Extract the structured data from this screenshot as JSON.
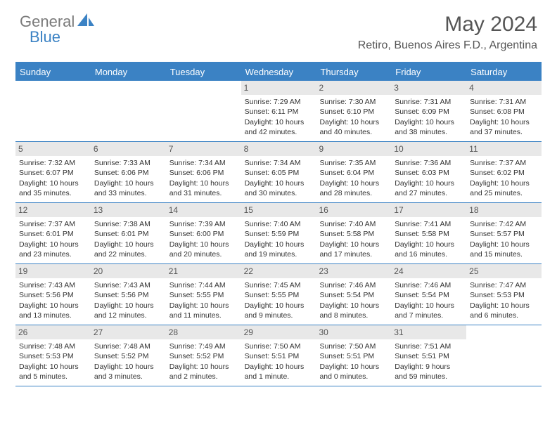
{
  "branding": {
    "logo_part1": "General",
    "logo_part2": "Blue",
    "logo_grey_color": "#7a7a7a",
    "logo_blue_color": "#3b82c4"
  },
  "header": {
    "month_title": "May 2024",
    "location": "Retiro, Buenos Aires F.D., Argentina"
  },
  "theme": {
    "header_bg": "#3b82c4",
    "header_text": "#ffffff",
    "daynum_bg": "#e8e8e8",
    "border_color": "#3b82c4",
    "body_text": "#333333",
    "title_fontsize": 30,
    "location_fontsize": 16,
    "dayheader_fontsize": 13,
    "cell_fontsize": 10.5
  },
  "day_names": [
    "Sunday",
    "Monday",
    "Tuesday",
    "Wednesday",
    "Thursday",
    "Friday",
    "Saturday"
  ],
  "weeks": [
    [
      {
        "empty": true
      },
      {
        "empty": true
      },
      {
        "empty": true
      },
      {
        "num": "1",
        "sunrise": "Sunrise: 7:29 AM",
        "sunset": "Sunset: 6:11 PM",
        "day1": "Daylight: 10 hours",
        "day2": "and 42 minutes."
      },
      {
        "num": "2",
        "sunrise": "Sunrise: 7:30 AM",
        "sunset": "Sunset: 6:10 PM",
        "day1": "Daylight: 10 hours",
        "day2": "and 40 minutes."
      },
      {
        "num": "3",
        "sunrise": "Sunrise: 7:31 AM",
        "sunset": "Sunset: 6:09 PM",
        "day1": "Daylight: 10 hours",
        "day2": "and 38 minutes."
      },
      {
        "num": "4",
        "sunrise": "Sunrise: 7:31 AM",
        "sunset": "Sunset: 6:08 PM",
        "day1": "Daylight: 10 hours",
        "day2": "and 37 minutes."
      }
    ],
    [
      {
        "num": "5",
        "sunrise": "Sunrise: 7:32 AM",
        "sunset": "Sunset: 6:07 PM",
        "day1": "Daylight: 10 hours",
        "day2": "and 35 minutes."
      },
      {
        "num": "6",
        "sunrise": "Sunrise: 7:33 AM",
        "sunset": "Sunset: 6:06 PM",
        "day1": "Daylight: 10 hours",
        "day2": "and 33 minutes."
      },
      {
        "num": "7",
        "sunrise": "Sunrise: 7:34 AM",
        "sunset": "Sunset: 6:06 PM",
        "day1": "Daylight: 10 hours",
        "day2": "and 31 minutes."
      },
      {
        "num": "8",
        "sunrise": "Sunrise: 7:34 AM",
        "sunset": "Sunset: 6:05 PM",
        "day1": "Daylight: 10 hours",
        "day2": "and 30 minutes."
      },
      {
        "num": "9",
        "sunrise": "Sunrise: 7:35 AM",
        "sunset": "Sunset: 6:04 PM",
        "day1": "Daylight: 10 hours",
        "day2": "and 28 minutes."
      },
      {
        "num": "10",
        "sunrise": "Sunrise: 7:36 AM",
        "sunset": "Sunset: 6:03 PM",
        "day1": "Daylight: 10 hours",
        "day2": "and 27 minutes."
      },
      {
        "num": "11",
        "sunrise": "Sunrise: 7:37 AM",
        "sunset": "Sunset: 6:02 PM",
        "day1": "Daylight: 10 hours",
        "day2": "and 25 minutes."
      }
    ],
    [
      {
        "num": "12",
        "sunrise": "Sunrise: 7:37 AM",
        "sunset": "Sunset: 6:01 PM",
        "day1": "Daylight: 10 hours",
        "day2": "and 23 minutes."
      },
      {
        "num": "13",
        "sunrise": "Sunrise: 7:38 AM",
        "sunset": "Sunset: 6:01 PM",
        "day1": "Daylight: 10 hours",
        "day2": "and 22 minutes."
      },
      {
        "num": "14",
        "sunrise": "Sunrise: 7:39 AM",
        "sunset": "Sunset: 6:00 PM",
        "day1": "Daylight: 10 hours",
        "day2": "and 20 minutes."
      },
      {
        "num": "15",
        "sunrise": "Sunrise: 7:40 AM",
        "sunset": "Sunset: 5:59 PM",
        "day1": "Daylight: 10 hours",
        "day2": "and 19 minutes."
      },
      {
        "num": "16",
        "sunrise": "Sunrise: 7:40 AM",
        "sunset": "Sunset: 5:58 PM",
        "day1": "Daylight: 10 hours",
        "day2": "and 17 minutes."
      },
      {
        "num": "17",
        "sunrise": "Sunrise: 7:41 AM",
        "sunset": "Sunset: 5:58 PM",
        "day1": "Daylight: 10 hours",
        "day2": "and 16 minutes."
      },
      {
        "num": "18",
        "sunrise": "Sunrise: 7:42 AM",
        "sunset": "Sunset: 5:57 PM",
        "day1": "Daylight: 10 hours",
        "day2": "and 15 minutes."
      }
    ],
    [
      {
        "num": "19",
        "sunrise": "Sunrise: 7:43 AM",
        "sunset": "Sunset: 5:56 PM",
        "day1": "Daylight: 10 hours",
        "day2": "and 13 minutes."
      },
      {
        "num": "20",
        "sunrise": "Sunrise: 7:43 AM",
        "sunset": "Sunset: 5:56 PM",
        "day1": "Daylight: 10 hours",
        "day2": "and 12 minutes."
      },
      {
        "num": "21",
        "sunrise": "Sunrise: 7:44 AM",
        "sunset": "Sunset: 5:55 PM",
        "day1": "Daylight: 10 hours",
        "day2": "and 11 minutes."
      },
      {
        "num": "22",
        "sunrise": "Sunrise: 7:45 AM",
        "sunset": "Sunset: 5:55 PM",
        "day1": "Daylight: 10 hours",
        "day2": "and 9 minutes."
      },
      {
        "num": "23",
        "sunrise": "Sunrise: 7:46 AM",
        "sunset": "Sunset: 5:54 PM",
        "day1": "Daylight: 10 hours",
        "day2": "and 8 minutes."
      },
      {
        "num": "24",
        "sunrise": "Sunrise: 7:46 AM",
        "sunset": "Sunset: 5:54 PM",
        "day1": "Daylight: 10 hours",
        "day2": "and 7 minutes."
      },
      {
        "num": "25",
        "sunrise": "Sunrise: 7:47 AM",
        "sunset": "Sunset: 5:53 PM",
        "day1": "Daylight: 10 hours",
        "day2": "and 6 minutes."
      }
    ],
    [
      {
        "num": "26",
        "sunrise": "Sunrise: 7:48 AM",
        "sunset": "Sunset: 5:53 PM",
        "day1": "Daylight: 10 hours",
        "day2": "and 5 minutes."
      },
      {
        "num": "27",
        "sunrise": "Sunrise: 7:48 AM",
        "sunset": "Sunset: 5:52 PM",
        "day1": "Daylight: 10 hours",
        "day2": "and 3 minutes."
      },
      {
        "num": "28",
        "sunrise": "Sunrise: 7:49 AM",
        "sunset": "Sunset: 5:52 PM",
        "day1": "Daylight: 10 hours",
        "day2": "and 2 minutes."
      },
      {
        "num": "29",
        "sunrise": "Sunrise: 7:50 AM",
        "sunset": "Sunset: 5:51 PM",
        "day1": "Daylight: 10 hours",
        "day2": "and 1 minute."
      },
      {
        "num": "30",
        "sunrise": "Sunrise: 7:50 AM",
        "sunset": "Sunset: 5:51 PM",
        "day1": "Daylight: 10 hours",
        "day2": "and 0 minutes."
      },
      {
        "num": "31",
        "sunrise": "Sunrise: 7:51 AM",
        "sunset": "Sunset: 5:51 PM",
        "day1": "Daylight: 9 hours",
        "day2": "and 59 minutes."
      },
      {
        "empty": true
      }
    ]
  ]
}
